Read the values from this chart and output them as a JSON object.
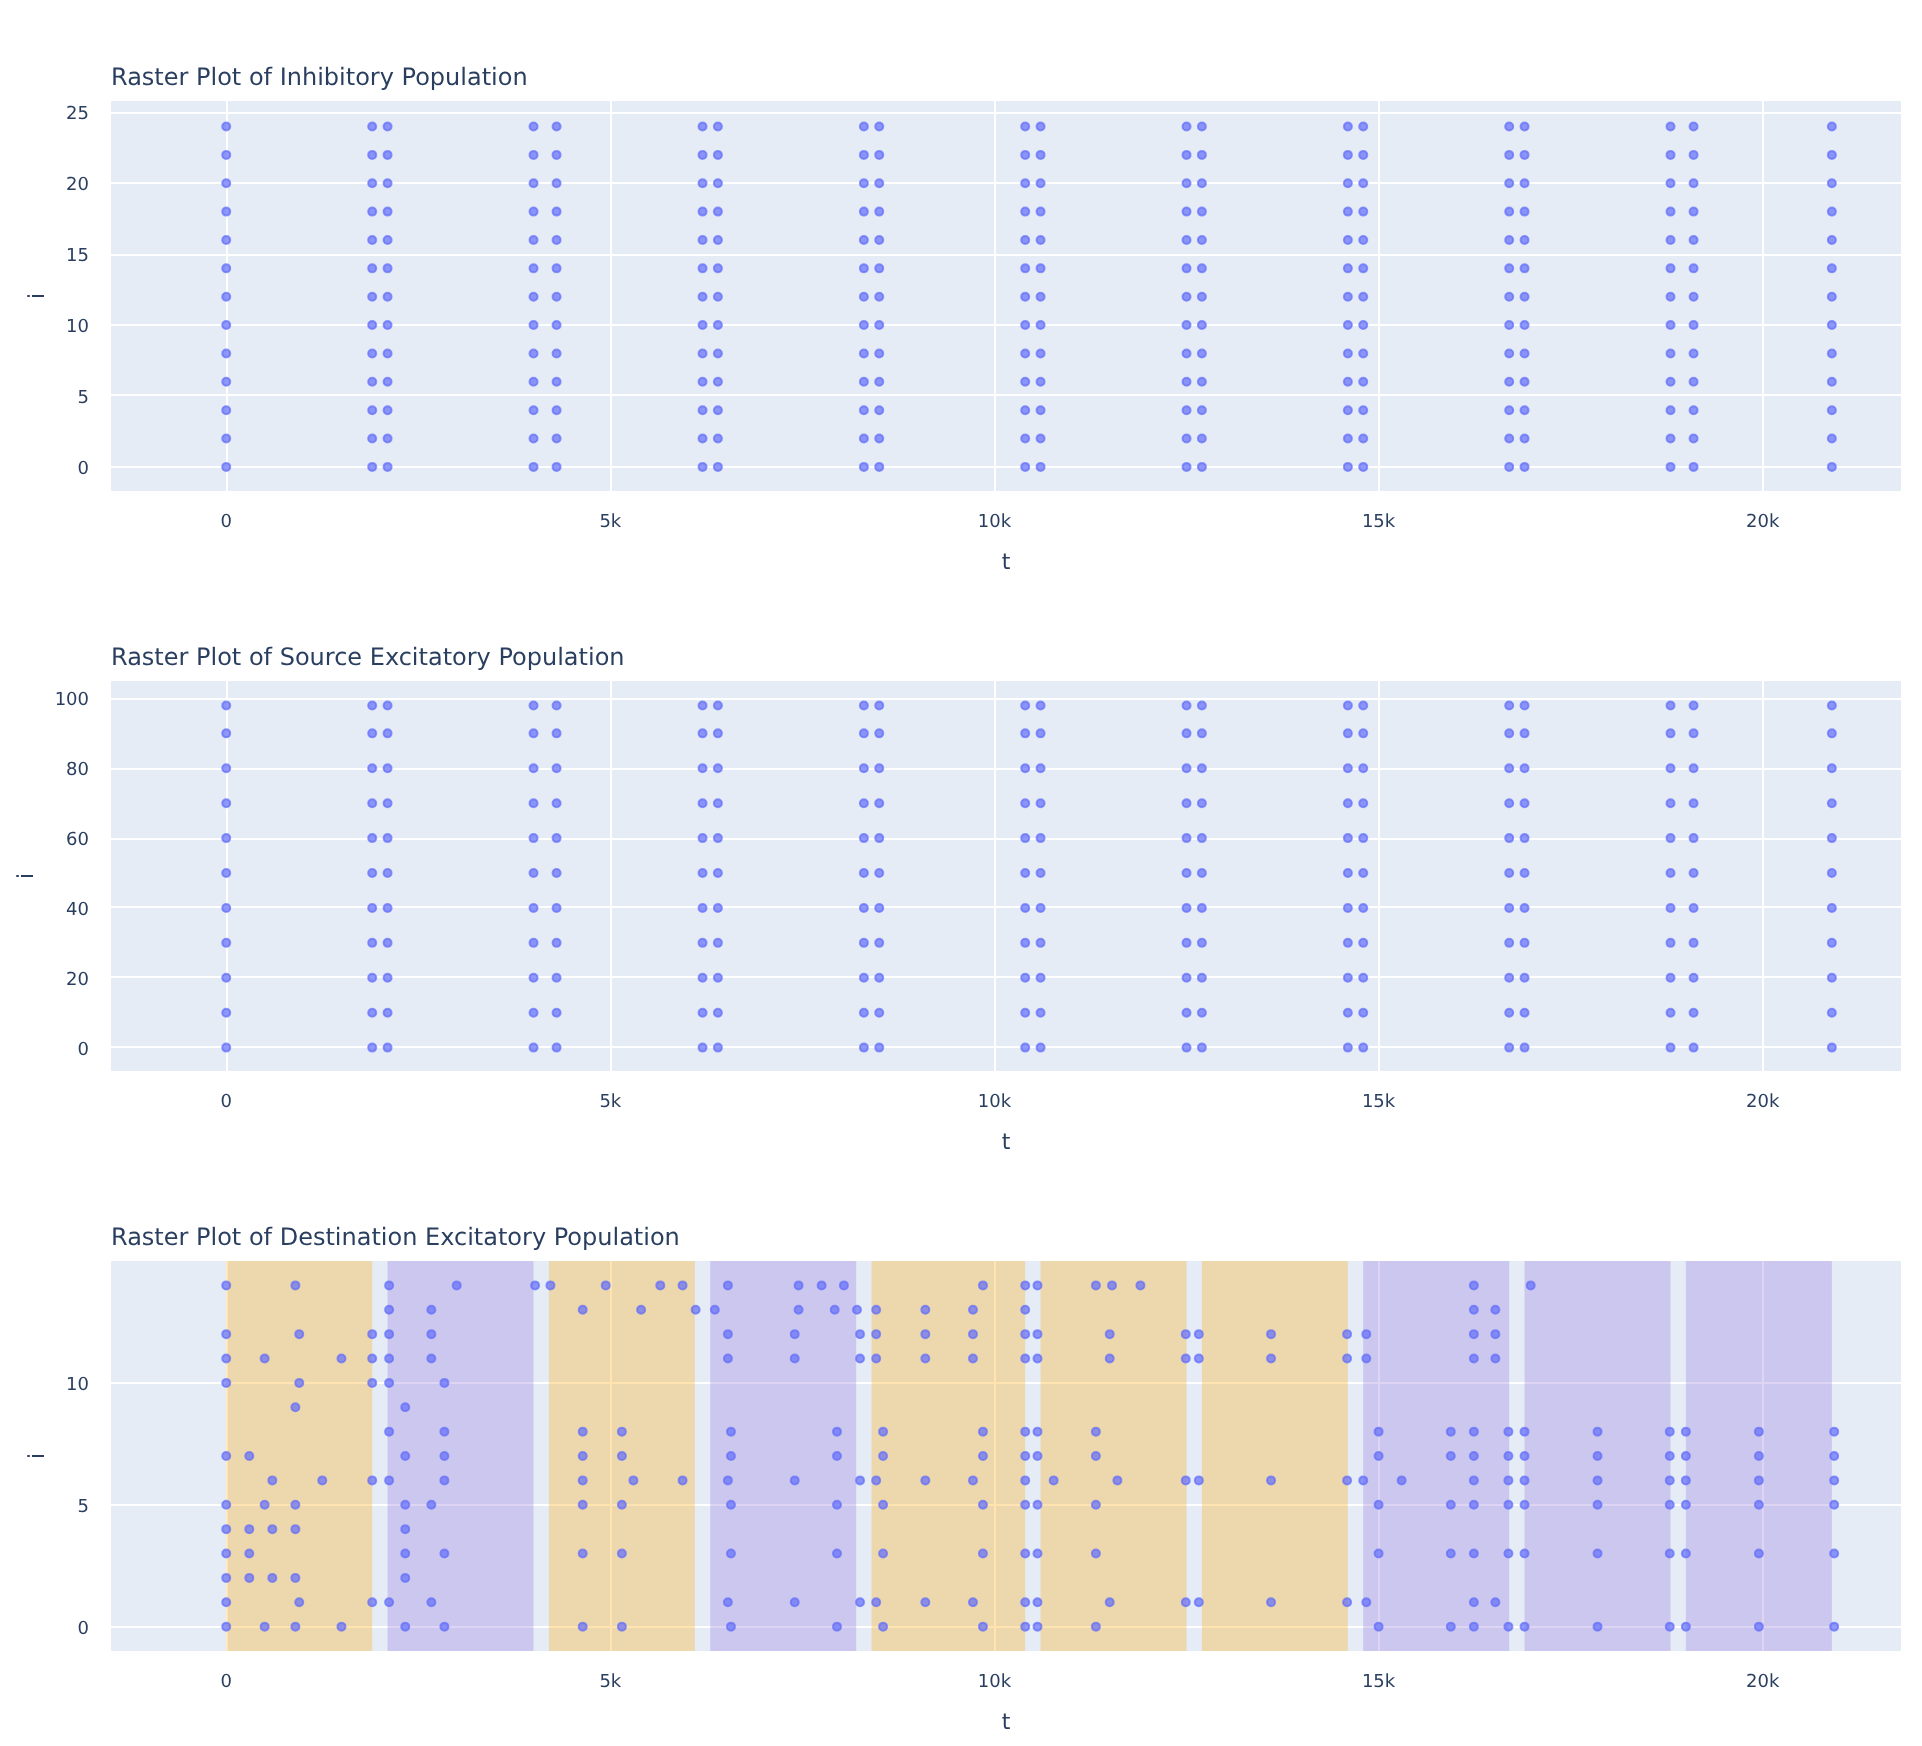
{
  "chart_data": [
    {
      "type": "scatter",
      "title": "Raster Plot of Inhibitory Population",
      "xlabel": "t",
      "ylabel": "i",
      "marker": "circle",
      "grid": true,
      "xlim": [
        -1500,
        21800
      ],
      "ylim": [
        -1.7,
        25.8
      ],
      "xticks": [
        0,
        {
          "value": 5000,
          "label": "5k"
        },
        {
          "value": 10000,
          "label": "10k"
        },
        {
          "value": 15000,
          "label": "15k"
        },
        {
          "value": 20000,
          "label": "20k"
        }
      ],
      "yticks": [
        0,
        5,
        10,
        15,
        20,
        25
      ],
      "x": [
        0,
        1900,
        2100,
        4000,
        4300,
        6200,
        6400,
        8300,
        8500,
        10400,
        10600,
        12500,
        12700,
        14600,
        14800,
        16700,
        16900,
        18800,
        19100,
        20900
      ],
      "series": [
        {
          "color": "#636efa",
          "values": [
            0,
            0,
            0,
            0,
            0,
            0,
            0,
            0,
            0,
            0,
            0,
            0,
            0,
            0,
            0,
            0,
            0,
            0,
            0,
            0
          ]
        },
        {
          "color": "#636efa",
          "values": [
            2,
            2,
            2,
            2,
            2,
            2,
            2,
            2,
            2,
            2,
            2,
            2,
            2,
            2,
            2,
            2,
            2,
            2,
            2,
            2
          ]
        },
        {
          "color": "#636efa",
          "values": [
            4,
            4,
            4,
            4,
            4,
            4,
            4,
            4,
            4,
            4,
            4,
            4,
            4,
            4,
            4,
            4,
            4,
            4,
            4,
            4
          ]
        },
        {
          "color": "#636efa",
          "values": [
            6,
            6,
            6,
            6,
            6,
            6,
            6,
            6,
            6,
            6,
            6,
            6,
            6,
            6,
            6,
            6,
            6,
            6,
            6,
            6
          ]
        },
        {
          "color": "#636efa",
          "values": [
            8,
            8,
            8,
            8,
            8,
            8,
            8,
            8,
            8,
            8,
            8,
            8,
            8,
            8,
            8,
            8,
            8,
            8,
            8,
            8
          ]
        },
        {
          "color": "#636efa",
          "values": [
            10,
            10,
            10,
            10,
            10,
            10,
            10,
            10,
            10,
            10,
            10,
            10,
            10,
            10,
            10,
            10,
            10,
            10,
            10,
            10
          ]
        },
        {
          "color": "#636efa",
          "values": [
            12,
            12,
            12,
            12,
            12,
            12,
            12,
            12,
            12,
            12,
            12,
            12,
            12,
            12,
            12,
            12,
            12,
            12,
            12,
            12
          ]
        },
        {
          "color": "#636efa",
          "values": [
            14,
            14,
            14,
            14,
            14,
            14,
            14,
            14,
            14,
            14,
            14,
            14,
            14,
            14,
            14,
            14,
            14,
            14,
            14,
            14
          ]
        },
        {
          "color": "#636efa",
          "values": [
            16,
            16,
            16,
            16,
            16,
            16,
            16,
            16,
            16,
            16,
            16,
            16,
            16,
            16,
            16,
            16,
            16,
            16,
            16,
            16
          ]
        },
        {
          "color": "#636efa",
          "values": [
            18,
            18,
            18,
            18,
            18,
            18,
            18,
            18,
            18,
            18,
            18,
            18,
            18,
            18,
            18,
            18,
            18,
            18,
            18,
            18
          ]
        },
        {
          "color": "#636efa",
          "values": [
            20,
            20,
            20,
            20,
            20,
            20,
            20,
            20,
            20,
            20,
            20,
            20,
            20,
            20,
            20,
            20,
            20,
            20,
            20,
            20
          ]
        },
        {
          "color": "#636efa",
          "values": [
            22,
            22,
            22,
            22,
            22,
            22,
            22,
            22,
            22,
            22,
            22,
            22,
            22,
            22,
            22,
            22,
            22,
            22,
            22,
            22
          ]
        },
        {
          "color": "#636efa",
          "values": [
            24,
            24,
            24,
            24,
            24,
            24,
            24,
            24,
            24,
            24,
            24,
            24,
            24,
            24,
            24,
            24,
            24,
            24,
            24,
            24
          ]
        }
      ]
    },
    {
      "type": "scatter",
      "title": "Raster Plot of Source Excitatory Population",
      "xlabel": "t",
      "ylabel": "i",
      "marker": "circle",
      "grid": true,
      "xlim": [
        -1500,
        21800
      ],
      "ylim": [
        -6.7,
        105
      ],
      "xticks": [
        0,
        {
          "value": 5000,
          "label": "5k"
        },
        {
          "value": 10000,
          "label": "10k"
        },
        {
          "value": 15000,
          "label": "15k"
        },
        {
          "value": 20000,
          "label": "20k"
        }
      ],
      "yticks": [
        0,
        20,
        40,
        60,
        80,
        100
      ],
      "x": [
        0,
        1900,
        2100,
        4000,
        4300,
        6200,
        6400,
        8300,
        8500,
        10400,
        10600,
        12500,
        12700,
        14600,
        14800,
        16700,
        16900,
        18800,
        19100,
        20900
      ],
      "series": [
        {
          "color": "#636efa",
          "values": [
            0,
            0,
            0,
            0,
            0,
            0,
            0,
            0,
            0,
            0,
            0,
            0,
            0,
            0,
            0,
            0,
            0,
            0,
            0,
            0
          ]
        },
        {
          "color": "#636efa",
          "values": [
            10,
            10,
            10,
            10,
            10,
            10,
            10,
            10,
            10,
            10,
            10,
            10,
            10,
            10,
            10,
            10,
            10,
            10,
            10,
            10
          ]
        },
        {
          "color": "#636efa",
          "values": [
            20,
            20,
            20,
            20,
            20,
            20,
            20,
            20,
            20,
            20,
            20,
            20,
            20,
            20,
            20,
            20,
            20,
            20,
            20,
            20
          ]
        },
        {
          "color": "#636efa",
          "values": [
            30,
            30,
            30,
            30,
            30,
            30,
            30,
            30,
            30,
            30,
            30,
            30,
            30,
            30,
            30,
            30,
            30,
            30,
            30,
            30
          ]
        },
        {
          "color": "#636efa",
          "values": [
            40,
            40,
            40,
            40,
            40,
            40,
            40,
            40,
            40,
            40,
            40,
            40,
            40,
            40,
            40,
            40,
            40,
            40,
            40,
            40
          ]
        },
        {
          "color": "#636efa",
          "values": [
            50,
            50,
            50,
            50,
            50,
            50,
            50,
            50,
            50,
            50,
            50,
            50,
            50,
            50,
            50,
            50,
            50,
            50,
            50,
            50
          ]
        },
        {
          "color": "#636efa",
          "values": [
            60,
            60,
            60,
            60,
            60,
            60,
            60,
            60,
            60,
            60,
            60,
            60,
            60,
            60,
            60,
            60,
            60,
            60,
            60,
            60
          ]
        },
        {
          "color": "#636efa",
          "values": [
            70,
            70,
            70,
            70,
            70,
            70,
            70,
            70,
            70,
            70,
            70,
            70,
            70,
            70,
            70,
            70,
            70,
            70,
            70,
            70
          ]
        },
        {
          "color": "#636efa",
          "values": [
            80,
            80,
            80,
            80,
            80,
            80,
            80,
            80,
            80,
            80,
            80,
            80,
            80,
            80,
            80,
            80,
            80,
            80,
            80,
            80
          ]
        },
        {
          "color": "#636efa",
          "values": [
            90,
            90,
            90,
            90,
            90,
            90,
            90,
            90,
            90,
            90,
            90,
            90,
            90,
            90,
            90,
            90,
            90,
            90,
            90,
            90
          ]
        },
        {
          "color": "#636efa",
          "values": [
            98,
            98,
            98,
            98,
            98,
            98,
            98,
            98,
            98,
            98,
            98,
            98,
            98,
            98,
            98,
            98,
            98,
            98,
            98,
            98
          ]
        }
      ]
    },
    {
      "type": "scatter",
      "title": "Raster Plot of Destination Excitatory Population",
      "xlabel": "t",
      "ylabel": "i",
      "marker": "circle",
      "grid": true,
      "xlim": [
        -1500,
        21800
      ],
      "ylim": [
        -1,
        15
      ],
      "xticks": [
        0,
        {
          "value": 5000,
          "label": "5k"
        },
        {
          "value": 10000,
          "label": "10k"
        },
        {
          "value": 15000,
          "label": "15k"
        },
        {
          "value": 20000,
          "label": "20k"
        }
      ],
      "yticks": [
        0,
        5,
        10
      ],
      "bands": [
        {
          "axis": "x",
          "from": 0,
          "to": 1900,
          "color": "#ffa500"
        },
        {
          "axis": "x",
          "from": 2100,
          "to": 4000,
          "color": "#9370db"
        },
        {
          "axis": "x",
          "from": 4200,
          "to": 6100,
          "color": "#ffa500"
        },
        {
          "axis": "x",
          "from": 6300,
          "to": 8200,
          "color": "#9370db"
        },
        {
          "axis": "x",
          "from": 8400,
          "to": 10400,
          "color": "#ffa500"
        },
        {
          "axis": "x",
          "from": 10600,
          "to": 12500,
          "color": "#ffa500"
        },
        {
          "axis": "x",
          "from": 12700,
          "to": 14600,
          "color": "#ffa500"
        },
        {
          "axis": "x",
          "from": 14800,
          "to": 16700,
          "color": "#9370db"
        },
        {
          "axis": "x",
          "from": 16900,
          "to": 18800,
          "color": "#9370db"
        },
        {
          "axis": "x",
          "from": 19000,
          "to": 20900,
          "color": "#9370db"
        }
      ],
      "series": [
        {
          "color": "#636efa",
          "x": [
            0,
            900,
            2120,
            3000,
            4020,
            4220,
            4940,
            5650,
            5940,
            6530,
            7450,
            7750,
            8040,
            9850,
            10400,
            10560,
            11320,
            11530,
            11900,
            16240,
            16980
          ],
          "values": [
            14,
            14,
            14,
            14,
            14,
            14,
            14,
            14,
            14,
            14,
            14,
            14,
            14,
            14,
            14,
            14,
            14,
            14,
            14,
            14,
            14
          ]
        },
        {
          "color": "#636efa",
          "x": [
            2120,
            2670,
            4640,
            5400,
            6110,
            6360,
            7450,
            7920,
            8210,
            8460,
            9100,
            9720,
            10400,
            16240,
            16520
          ],
          "values": [
            13,
            13,
            13,
            13,
            13,
            13,
            13,
            13,
            13,
            13,
            13,
            13,
            13,
            13,
            13
          ]
        },
        {
          "color": "#636efa",
          "x": [
            0,
            950,
            1900,
            2120,
            2670,
            6530,
            7400,
            8250,
            8460,
            9100,
            9720,
            10400,
            10560,
            11500,
            12490,
            12660,
            13600,
            14590,
            14840,
            16240,
            16520
          ],
          "values": [
            12,
            12,
            12,
            12,
            12,
            12,
            12,
            12,
            12,
            12,
            12,
            12,
            12,
            12,
            12,
            12,
            12,
            12,
            12,
            12,
            12
          ]
        },
        {
          "color": "#636efa",
          "x": [
            0,
            500,
            1500,
            1900,
            2120,
            2670,
            6530,
            7400,
            8250,
            8460,
            9100,
            9720,
            10400,
            10560,
            11500,
            12490,
            12660,
            13600,
            14590,
            14840,
            16240,
            16520
          ],
          "values": [
            11,
            11,
            11,
            11,
            11,
            11,
            11,
            11,
            11,
            11,
            11,
            11,
            11,
            11,
            11,
            11,
            11,
            11,
            11,
            11,
            11,
            11
          ]
        },
        {
          "color": "#636efa",
          "x": [
            0,
            950,
            1900,
            2120,
            2840
          ],
          "values": [
            10,
            10,
            10,
            10,
            10
          ]
        },
        {
          "color": "#636efa",
          "x": [
            900,
            2330
          ],
          "values": [
            9,
            9
          ]
        },
        {
          "color": "#636efa",
          "x": [
            2120,
            2840,
            4640,
            5150,
            6570,
            7950,
            8550,
            9850,
            10400,
            10560,
            11320,
            15000,
            15940,
            16240,
            16690,
            16900,
            17850,
            18790,
            19000,
            19950,
            20930
          ],
          "values": [
            8,
            8,
            8,
            8,
            8,
            8,
            8,
            8,
            8,
            8,
            8,
            8,
            8,
            8,
            8,
            8,
            8,
            8,
            8,
            8,
            8
          ]
        },
        {
          "color": "#636efa",
          "x": [
            0,
            300,
            2330,
            2840,
            4640,
            5150,
            6570,
            7950,
            8550,
            9850,
            10400,
            10560,
            11320,
            15000,
            15940,
            16240,
            16690,
            16900,
            17850,
            18790,
            19000,
            19950,
            20930
          ],
          "values": [
            7,
            7,
            7,
            7,
            7,
            7,
            7,
            7,
            7,
            7,
            7,
            7,
            7,
            7,
            7,
            7,
            7,
            7,
            7,
            7,
            7,
            7,
            7
          ]
        },
        {
          "color": "#636efa",
          "x": [
            600,
            1250,
            1900,
            2120,
            2840,
            4640,
            5300,
            5940,
            6530,
            7400,
            8250,
            8460,
            9100,
            9720,
            10400,
            10770,
            11600,
            12490,
            12660,
            13600,
            14590,
            14800,
            15300,
            16240,
            16690,
            16900,
            17850,
            18790,
            19000,
            19950,
            20930
          ],
          "values": [
            6,
            6,
            6,
            6,
            6,
            6,
            6,
            6,
            6,
            6,
            6,
            6,
            6,
            6,
            6,
            6,
            6,
            6,
            6,
            6,
            6,
            6,
            6,
            6,
            6,
            6,
            6,
            6,
            6,
            6,
            6
          ]
        },
        {
          "color": "#636efa",
          "x": [
            0,
            500,
            900,
            2330,
            2670,
            4640,
            5150,
            6570,
            7950,
            8550,
            9850,
            10400,
            10560,
            11320,
            15000,
            15940,
            16240,
            16690,
            16900,
            17850,
            18790,
            19000,
            19950,
            20930
          ],
          "values": [
            5,
            5,
            5,
            5,
            5,
            5,
            5,
            5,
            5,
            5,
            5,
            5,
            5,
            5,
            5,
            5,
            5,
            5,
            5,
            5,
            5,
            5,
            5,
            5
          ]
        },
        {
          "color": "#636efa",
          "x": [
            0,
            300,
            600,
            900,
            2330
          ],
          "values": [
            4,
            4,
            4,
            4,
            4
          ]
        },
        {
          "color": "#636efa",
          "x": [
            0,
            300,
            2330,
            2840,
            4640,
            5150,
            6570,
            7950,
            8550,
            9850,
            10400,
            10560,
            11320,
            15000,
            15940,
            16240,
            16690,
            16900,
            17850,
            18790,
            19000,
            19950,
            20930
          ],
          "values": [
            3,
            3,
            3,
            3,
            3,
            3,
            3,
            3,
            3,
            3,
            3,
            3,
            3,
            3,
            3,
            3,
            3,
            3,
            3,
            3,
            3,
            3,
            3
          ]
        },
        {
          "color": "#636efa",
          "x": [
            0,
            300,
            600,
            900,
            2330
          ],
          "values": [
            2,
            2,
            2,
            2,
            2
          ]
        },
        {
          "color": "#636efa",
          "x": [
            0,
            950,
            1900,
            2120,
            2670,
            6530,
            7400,
            8250,
            8460,
            9100,
            9720,
            10400,
            10560,
            11500,
            12490,
            12660,
            13600,
            14590,
            14840,
            16240,
            16520
          ],
          "values": [
            1,
            1,
            1,
            1,
            1,
            1,
            1,
            1,
            1,
            1,
            1,
            1,
            1,
            1,
            1,
            1,
            1,
            1,
            1,
            1,
            1
          ]
        },
        {
          "color": "#636efa",
          "x": [
            0,
            500,
            900,
            1500,
            2330,
            2840,
            4640,
            5150,
            6570,
            7950,
            8550,
            9850,
            10400,
            10560,
            11320,
            15000,
            15940,
            16240,
            16690,
            16900,
            17850,
            18790,
            19000,
            19950,
            20930
          ],
          "values": [
            0,
            0,
            0,
            0,
            0,
            0,
            0,
            0,
            0,
            0,
            0,
            0,
            0,
            0,
            0,
            0,
            0,
            0,
            0,
            0,
            0,
            0,
            0,
            0,
            0
          ]
        }
      ]
    }
  ]
}
